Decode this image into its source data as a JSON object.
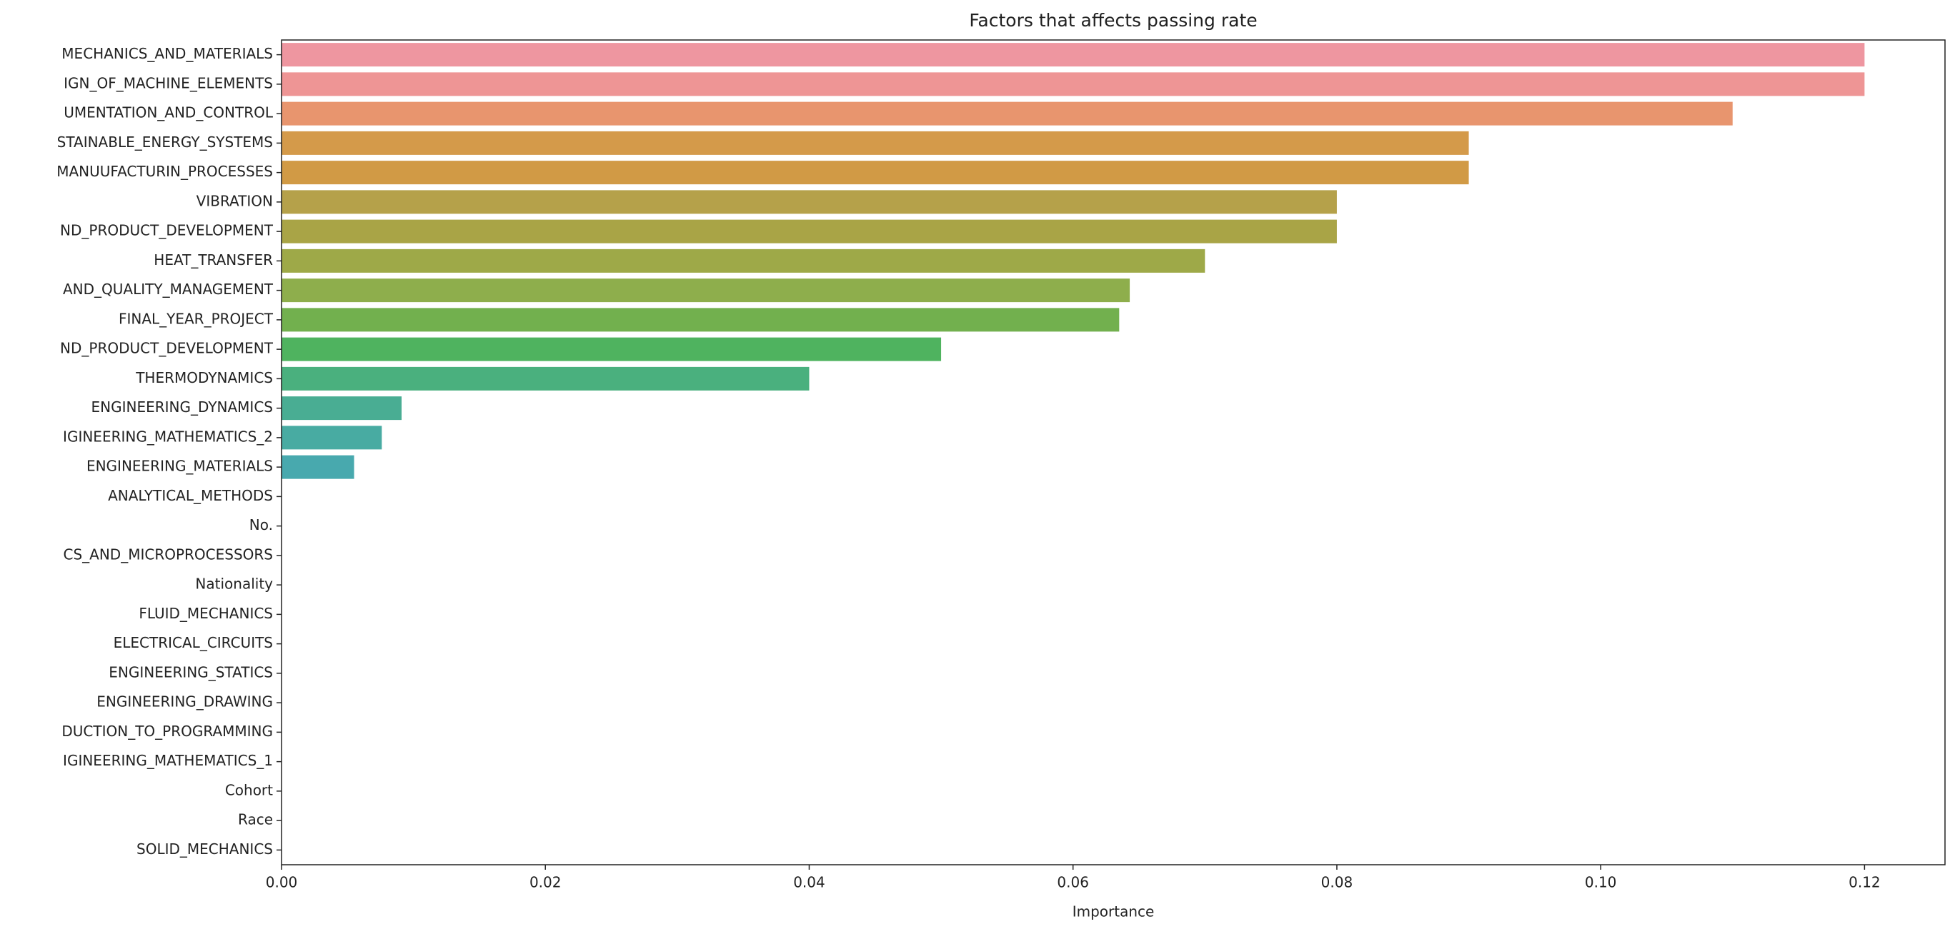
{
  "chart_data": {
    "type": "barh",
    "title": "Factors that affects passing rate",
    "x_label": "Importance",
    "categories": [
      "MECHANICS_AND_MATERIALS",
      "IGN_OF_MACHINE_ELEMENTS",
      "UMENTATION_AND_CONTROL",
      "STAINABLE_ENERGY_SYSTEMS",
      "MANUUFACTURIN_PROCESSES",
      "VIBRATION",
      "ND_PRODUCT_DEVELOPMENT",
      "HEAT_TRANSFER",
      "AND_QUALITY_MANAGEMENT",
      "FINAL_YEAR_PROJECT",
      "ND_PRODUCT_DEVELOPMENT",
      "THERMODYNAMICS",
      "ENGINEERING_DYNAMICS",
      "IGINEERING_MATHEMATICS_2",
      "ENGINEERING_MATERIALS",
      "ANALYTICAL_METHODS",
      "No.",
      "CS_AND_MICROPROCESSORS",
      "Nationality",
      "FLUID_MECHANICS",
      "ELECTRICAL_CIRCUITS",
      "ENGINEERING_STATICS",
      "ENGINEERING_DRAWING",
      "DUCTION_TO_PROGRAMMING",
      "IGINEERING_MATHEMATICS_1",
      "Cohort",
      "Race",
      "SOLID_MECHANICS"
    ],
    "values": [
      0.12,
      0.12,
      0.11,
      0.09,
      0.09,
      0.08,
      0.08,
      0.07,
      0.0643,
      0.0635,
      0.05,
      0.04,
      0.0091,
      0.0076,
      0.0055,
      0,
      0,
      0,
      0,
      0,
      0,
      0,
      0,
      0,
      0,
      0,
      0,
      0
    ],
    "colors": [
      "#ee96a0",
      "#ee9595",
      "#e8956e",
      "#d49a4a",
      "#d19a45",
      "#b5a14a",
      "#a9a446",
      "#9ea948",
      "#8eae4c",
      "#72b04e",
      "#4fb35f",
      "#4ab07e",
      "#49ad93",
      "#48aba2",
      "#48a9ae",
      "#49a6bd",
      "#4ba2cb",
      "#589ddb",
      "#7896e8",
      "#9a8ded",
      "#b585ee",
      "#c97fe9",
      "#dd79e0",
      "#e97ad0",
      "#f07fbf",
      "#f385ad",
      "#f28b9e",
      "#f08f95"
    ],
    "xlim": [
      0,
      0.1261
    ],
    "xticks": [
      {
        "value": 0,
        "label": "0.00"
      },
      0.02,
      0.04,
      0.06,
      0.08,
      {
        "value": 0.1,
        "label": "0.10"
      },
      0.12
    ]
  }
}
